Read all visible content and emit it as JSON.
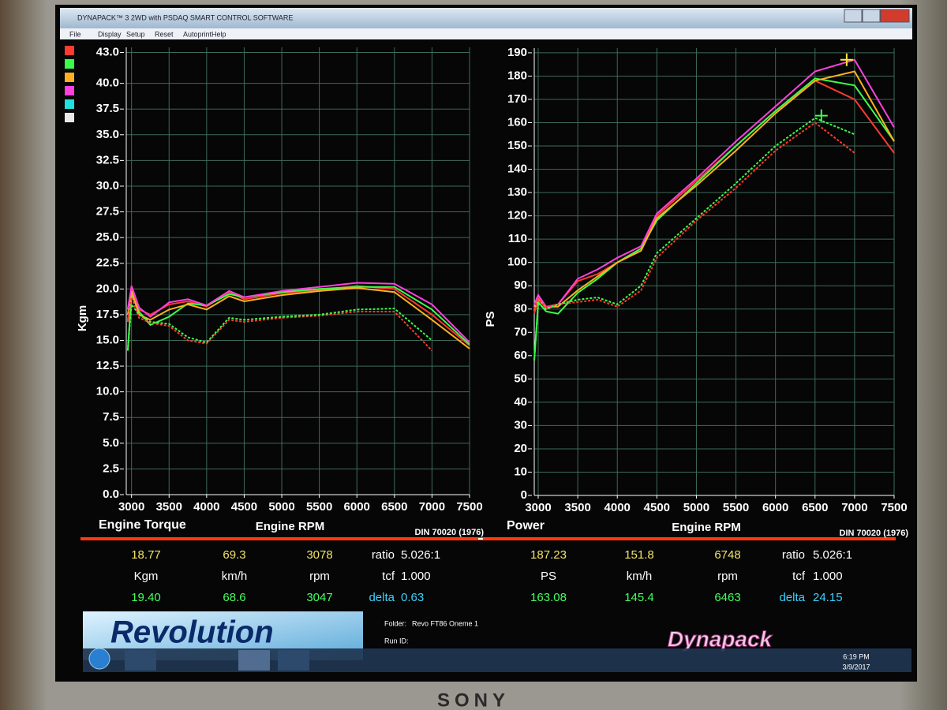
{
  "window": {
    "title": "DYNAPACK™ 3 2WD with PSDAQ SMART CONTROL SOFTWARE",
    "menu": [
      "File",
      "Display",
      "Setup",
      "Reset",
      "Autoprint",
      "Help"
    ]
  },
  "chart_data": [
    {
      "type": "line",
      "title": "Engine Torque",
      "x_label": "Engine RPM",
      "y_label": "Kgm",
      "note": "DIN 70020 (1976)",
      "x": [
        2950,
        3000,
        3100,
        3250,
        3500,
        3750,
        4000,
        4300,
        4500,
        5000,
        5500,
        6000,
        6500,
        7000,
        7500
      ],
      "series": [
        {
          "color": "#ff3b2f",
          "dash": false,
          "values": [
            16.8,
            20.2,
            18.0,
            17.5,
            18.5,
            18.8,
            18.3,
            19.7,
            19.0,
            19.6,
            19.9,
            20.3,
            20.0,
            17.5,
            14.5
          ]
        },
        {
          "color": "#3cff4a",
          "dash": false,
          "values": [
            14.0,
            19.5,
            17.8,
            16.5,
            17.3,
            18.6,
            18.4,
            19.5,
            19.2,
            19.7,
            20.0,
            20.2,
            20.2,
            18.0,
            14.6
          ]
        },
        {
          "color": "#ffb020",
          "dash": false,
          "values": [
            17.5,
            19.8,
            17.5,
            17.0,
            18.0,
            18.5,
            18.0,
            19.3,
            18.8,
            19.4,
            19.8,
            20.1,
            19.7,
            17.0,
            14.2
          ]
        },
        {
          "color": "#ff40e0",
          "dash": false,
          "values": [
            18.0,
            20.3,
            18.2,
            17.3,
            18.7,
            19.0,
            18.4,
            19.8,
            19.2,
            19.8,
            20.2,
            20.6,
            20.5,
            18.5,
            14.8
          ]
        },
        {
          "color": "#ff3b2f",
          "dash": true,
          "values": [
            17.0,
            19.2,
            17.2,
            16.7,
            16.4,
            15.0,
            14.7,
            17.0,
            16.8,
            17.2,
            17.4,
            17.8,
            17.8,
            14.0,
            null
          ]
        },
        {
          "color": "#3cff4a",
          "dash": true,
          "values": [
            14.0,
            18.5,
            17.5,
            16.8,
            16.6,
            15.3,
            14.8,
            17.2,
            17.0,
            17.3,
            17.5,
            18.0,
            18.1,
            15.0,
            null
          ]
        }
      ],
      "legend_swatches": [
        "#ff3b2f",
        "#3cff4a",
        "#ffb020",
        "#ff40e0",
        "#20e0e0",
        "#e8e8e8"
      ],
      "xlim": [
        2930,
        7500
      ],
      "xticks": [
        3000,
        3500,
        4000,
        4500,
        5000,
        5500,
        6000,
        6500,
        7000,
        7500
      ],
      "ylim": [
        0,
        43.5
      ],
      "yticks": [
        {
          "value": 0,
          "label": "0.0"
        },
        2.5,
        {
          "value": 5,
          "label": "5.0"
        },
        7.5,
        {
          "value": 10,
          "label": "10.0"
        },
        12.5,
        {
          "value": 15,
          "label": "15.0"
        },
        17.5,
        {
          "value": 20,
          "label": "20.0"
        },
        22.5,
        {
          "value": 25,
          "label": "25.0"
        },
        27.5,
        {
          "value": 30,
          "label": "30.0"
        },
        32.5,
        {
          "value": 35,
          "label": "35.0"
        },
        37.5,
        {
          "value": 40,
          "label": "40.0"
        },
        {
          "value": 43,
          "label": "43.0"
        }
      ],
      "grid": true,
      "grid_color": "#3f6a5a"
    },
    {
      "type": "line",
      "title": "Power",
      "x_label": "Engine RPM",
      "y_label": "PS",
      "note": "DIN 70020 (1976)",
      "x": [
        2950,
        3000,
        3100,
        3250,
        3500,
        3750,
        4000,
        4300,
        4500,
        5000,
        5500,
        6000,
        6500,
        7000,
        7500
      ],
      "series": [
        {
          "color": "#ff3b2f",
          "dash": false,
          "values": [
            78,
            85,
            80,
            82,
            92,
            95,
            100,
            106,
            120,
            135,
            150,
            165,
            178,
            170,
            147
          ]
        },
        {
          "color": "#3cff4a",
          "dash": false,
          "values": [
            58,
            83,
            79,
            78,
            87,
            93,
            100,
            106,
            118,
            134,
            150,
            165,
            179,
            176,
            152
          ]
        },
        {
          "color": "#ffb020",
          "dash": false,
          "values": [
            80,
            84,
            81,
            81,
            88,
            94,
            100,
            105,
            119,
            133,
            148,
            164,
            178,
            182,
            152
          ]
        },
        {
          "color": "#ff40e0",
          "dash": false,
          "values": [
            82,
            86,
            81,
            82,
            93,
            97,
            102,
            107,
            121,
            136,
            152,
            167,
            182,
            187,
            158
          ]
        },
        {
          "color": "#ff3b2f",
          "dash": true,
          "values": [
            80,
            84,
            81,
            82,
            83,
            84,
            81,
            88,
            102,
            118,
            132,
            148,
            160,
            147,
            null
          ]
        },
        {
          "color": "#3cff4a",
          "dash": true,
          "values": [
            58,
            82,
            80,
            82,
            84,
            85,
            82,
            90,
            104,
            119,
            134,
            150,
            162,
            155,
            null
          ]
        }
      ],
      "markers": [
        {
          "x": 6900,
          "y": 187,
          "color": "#ffe640"
        },
        {
          "x": 6580,
          "y": 163,
          "color": "#3cff4a"
        }
      ],
      "xlim": [
        2950,
        7500
      ],
      "xticks": [
        3000,
        3500,
        4000,
        4500,
        5000,
        5500,
        6000,
        6500,
        7000,
        7500
      ],
      "ylim": [
        0,
        192
      ],
      "yticks": [
        0,
        10,
        20,
        30,
        40,
        50,
        60,
        70,
        80,
        90,
        100,
        110,
        120,
        130,
        140,
        150,
        160,
        170,
        180,
        190
      ],
      "grid": true,
      "grid_color": "#3f6a5a"
    }
  ],
  "readouts": [
    {
      "rows": [
        [
          "18.77",
          "69.3",
          "3078",
          "ratio",
          "5.026:1"
        ],
        [
          "Kgm",
          "km/h",
          "rpm",
          "tcf",
          "1.000"
        ],
        [
          "19.40",
          "68.6",
          "3047",
          "delta",
          "0.63"
        ]
      ]
    },
    {
      "rows": [
        [
          "187.23",
          "151.8",
          "6748",
          "ratio",
          "5.026:1"
        ],
        [
          "PS",
          "km/h",
          "rpm",
          "tcf",
          "1.000"
        ],
        [
          "163.08",
          "145.4",
          "6463",
          "delta",
          "24.15"
        ]
      ]
    }
  ],
  "footer": {
    "logo": "Revolution",
    "folder_label": "Folder:",
    "folder": "Revo FT86 Oneme 1",
    "run_label": "Run ID:",
    "brand": "Dynapack"
  },
  "taskbar": {
    "time": "6:19 PM",
    "date": "3/9/2017"
  },
  "monitor": {
    "brand": "SONY"
  }
}
